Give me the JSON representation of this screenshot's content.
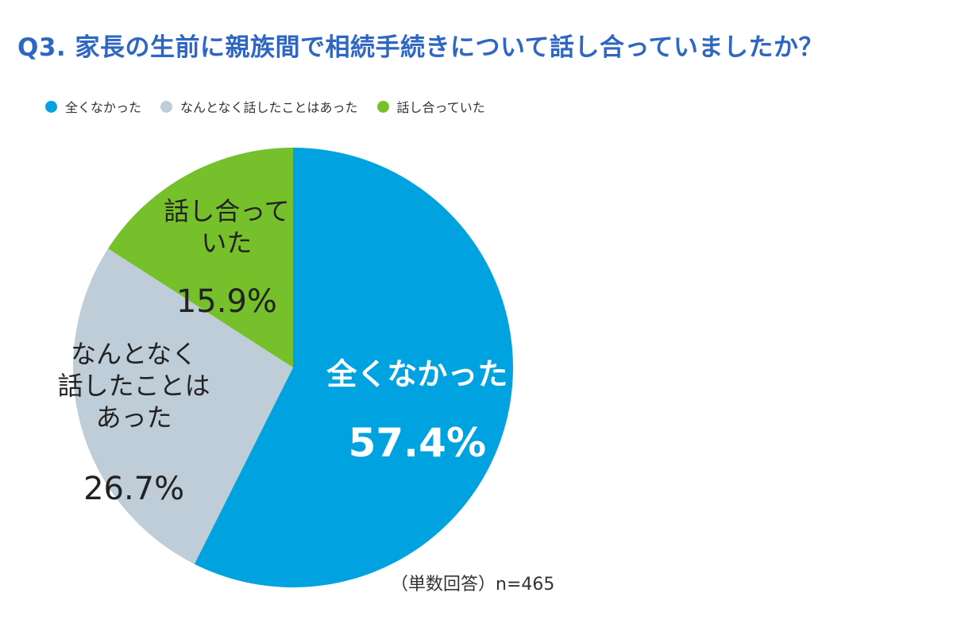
{
  "chart_data": {
    "type": "pie",
    "title": "Q3. 家長の生前に親族間で相続手続きについて話し合っていましたか？",
    "slices": [
      {
        "name": "全くなかった",
        "value": 57.4,
        "label_lines": [
          "全くなかった"
        ],
        "value_label": "57.4%",
        "color": "#00a3df"
      },
      {
        "name": "なんとなく話したことはあった",
        "value": 26.7,
        "label_lines": [
          "なんとなく",
          "話したことは",
          "あった"
        ],
        "value_label": "26.7%",
        "color": "#bfcdd8"
      },
      {
        "name": "話し合っていた",
        "value": 15.9,
        "label_lines": [
          "話し合って",
          "いた"
        ],
        "value_label": "15.9%",
        "color": "#76c12b"
      }
    ],
    "legend": [
      "全くなかった",
      "なんとなく話したことはあった",
      "話し合っていた"
    ],
    "legend_position": "top-left",
    "note": "（単数回答）n=465"
  }
}
